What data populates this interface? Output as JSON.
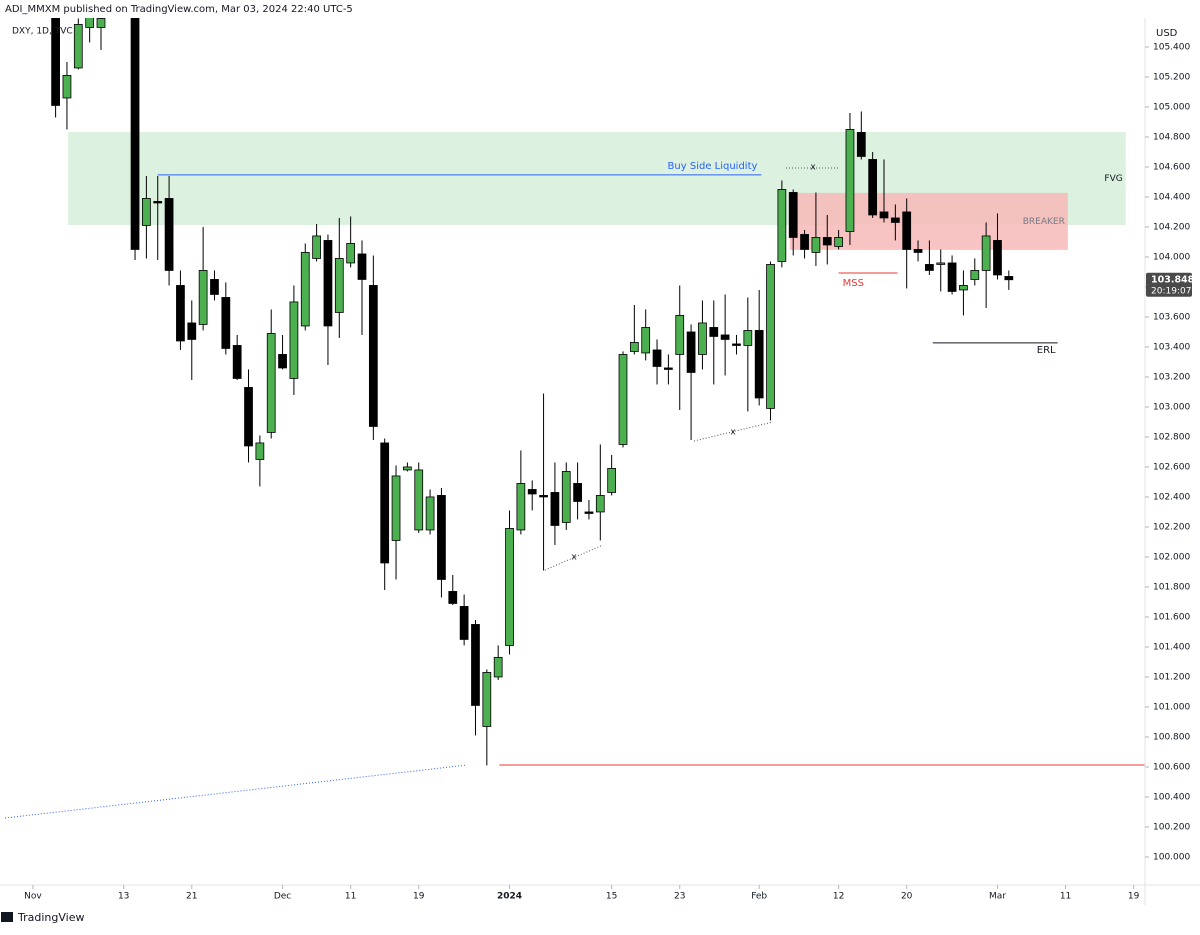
{
  "header": {
    "publisher": "ADI_MMXM published on TradingView.com, Mar 03, 2024 22:40 UTC-5",
    "symbol": "DXY, 1D, TVC"
  },
  "footer": {
    "brand": "TradingView"
  },
  "chart_data": {
    "type": "candlestick",
    "currency": "USD",
    "up_color": "#4caf50",
    "down_color": "#000000",
    "border_color": "#000000",
    "x": [
      2,
      3,
      4,
      5,
      6,
      9,
      10,
      11,
      12,
      13,
      14,
      15,
      16,
      17,
      18,
      19,
      20,
      21,
      22,
      23,
      24,
      25,
      26,
      27,
      28,
      29,
      30,
      31,
      32,
      33,
      34,
      35,
      36,
      37,
      38,
      39,
      40,
      41,
      42,
      43,
      44,
      45,
      46,
      47,
      48,
      49,
      50,
      51,
      52,
      53,
      54,
      55,
      56,
      57,
      58,
      59,
      60,
      61,
      62,
      63,
      64,
      65,
      66,
      67,
      68,
      69,
      70,
      71,
      72,
      73,
      74,
      75,
      76,
      77,
      78,
      79,
      80,
      81,
      82,
      83,
      84,
      85,
      86
    ],
    "open": [
      105.62,
      105.06,
      105.26,
      105.53,
      105.53,
      105.75,
      104.21,
      104.37,
      104.39,
      103.81,
      103.56,
      103.55,
      103.85,
      103.73,
      103.41,
      103.13,
      102.65,
      102.83,
      103.35,
      103.19,
      103.54,
      103.99,
      104.11,
      103.63,
      103.96,
      104.02,
      103.81,
      102.76,
      102.11,
      102.58,
      102.18,
      102.18,
      102.41,
      101.77,
      101.67,
      101.55,
      100.87,
      101.2,
      101.41,
      102.18,
      102.45,
      102.41,
      102.43,
      102.23,
      102.49,
      102.3,
      102.3,
      102.43,
      102.75,
      103.37,
      103.36,
      103.38,
      103.26,
      103.35,
      103.5,
      103.35,
      103.53,
      103.48,
      103.42,
      103.41,
      103.51,
      102.99,
      103.97,
      104.43,
      104.15,
      104.03,
      104.13,
      104.07,
      104.17,
      104.83,
      104.65,
      104.3,
      104.26,
      104.3,
      104.05,
      103.95,
      103.95,
      103.96,
      103.78,
      103.85,
      103.91,
      104.11,
      103.87
    ],
    "high": [
      105.7,
      105.3,
      105.59,
      105.65,
      105.66,
      105.85,
      104.54,
      104.54,
      104.54,
      103.91,
      103.71,
      104.2,
      103.91,
      103.83,
      103.48,
      103.25,
      102.81,
      103.65,
      103.48,
      103.81,
      104.09,
      104.22,
      104.15,
      104.26,
      104.27,
      104.11,
      104.01,
      102.79,
      102.61,
      102.63,
      102.63,
      102.45,
      102.46,
      101.88,
      101.75,
      101.58,
      101.25,
      101.41,
      102.31,
      102.71,
      102.51,
      103.09,
      102.63,
      102.63,
      102.63,
      102.38,
      102.75,
      102.68,
      103.37,
      103.68,
      103.65,
      103.45,
      103.35,
      103.81,
      103.55,
      103.71,
      103.71,
      103.75,
      103.48,
      103.73,
      103.78,
      103.97,
      104.51,
      104.45,
      104.18,
      104.43,
      104.28,
      104.18,
      104.96,
      104.97,
      104.7,
      104.65,
      104.35,
      104.39,
      104.11,
      104.11,
      104.05,
      104.01,
      103.91,
      103.99,
      104.23,
      104.29,
      103.91
    ],
    "low": [
      104.93,
      104.85,
      105.25,
      105.43,
      105.38,
      103.98,
      103.99,
      103.98,
      103.81,
      103.38,
      103.18,
      103.51,
      103.71,
      103.35,
      103.18,
      102.63,
      102.47,
      102.79,
      103.25,
      103.08,
      103.51,
      103.97,
      103.28,
      103.46,
      103.93,
      103.48,
      102.78,
      101.78,
      101.85,
      102.57,
      102.16,
      102.15,
      101.73,
      101.68,
      101.41,
      100.81,
      100.61,
      101.18,
      101.35,
      102.15,
      102.31,
      101.91,
      102.08,
      102.18,
      102.25,
      102.25,
      102.11,
      102.41,
      102.73,
      103.35,
      103.31,
      103.15,
      103.15,
      102.98,
      102.78,
      103.25,
      103.15,
      103.21,
      103.35,
      102.97,
      103.01,
      102.91,
      103.93,
      104.01,
      103.99,
      103.94,
      103.95,
      104.05,
      104.08,
      104.65,
      104.26,
      104.23,
      104.11,
      103.79,
      103.97,
      103.88,
      103.77,
      103.75,
      103.61,
      103.81,
      103.66,
      103.85,
      103.78
    ],
    "close": [
      105.01,
      105.21,
      105.55,
      105.61,
      105.59,
      104.05,
      104.39,
      104.36,
      103.91,
      103.44,
      103.45,
      103.91,
      103.75,
      103.39,
      103.19,
      102.74,
      102.76,
      103.49,
      103.26,
      103.7,
      104.03,
      104.14,
      103.54,
      103.99,
      104.09,
      103.85,
      102.87,
      101.96,
      102.54,
      102.6,
      102.58,
      102.4,
      101.85,
      101.69,
      101.45,
      101.01,
      101.23,
      101.33,
      102.19,
      102.49,
      102.42,
      102.4,
      102.21,
      102.57,
      102.37,
      102.29,
      102.41,
      102.59,
      103.35,
      103.43,
      103.53,
      103.27,
      103.25,
      103.61,
      103.23,
      103.56,
      103.47,
      103.45,
      103.41,
      103.51,
      103.06,
      103.95,
      104.45,
      104.13,
      104.05,
      104.13,
      104.08,
      104.13,
      104.85,
      104.67,
      104.28,
      104.26,
      104.23,
      104.05,
      104.03,
      103.91,
      103.96,
      103.77,
      103.81,
      103.91,
      104.14,
      103.88,
      103.848
    ],
    "last_price": 103.848,
    "countdown": "20:19:07",
    "xlim": [
      -2.9,
      98
    ],
    "ylim": [
      99.813,
      105.593
    ],
    "xticks": [
      {
        "value": 0,
        "label": "Nov"
      },
      {
        "value": 8,
        "label": "13"
      },
      {
        "value": 14,
        "label": "21"
      },
      {
        "value": 22,
        "label": "Dec"
      },
      {
        "value": 28,
        "label": "11"
      },
      {
        "value": 34,
        "label": "19"
      },
      {
        "value": 42,
        "label": "2024"
      },
      {
        "value": 51,
        "label": "15"
      },
      {
        "value": 57,
        "label": "23"
      },
      {
        "value": 64,
        "label": "Feb"
      },
      {
        "value": 71,
        "label": "12"
      },
      {
        "value": 77,
        "label": "20"
      },
      {
        "value": 85,
        "label": "Mar"
      },
      {
        "value": 91,
        "label": "11"
      },
      {
        "value": 97,
        "label": "19"
      }
    ],
    "yticks": [
      {
        "value": 100,
        "label": "100.000"
      },
      {
        "value": 100.2,
        "label": "100.200"
      },
      {
        "value": 100.4,
        "label": "100.400"
      },
      {
        "value": 100.6,
        "label": "100.600"
      },
      {
        "value": 100.8,
        "label": "100.800"
      },
      {
        "value": 101,
        "label": "101.000"
      },
      {
        "value": 101.2,
        "label": "101.200"
      },
      {
        "value": 101.4,
        "label": "101.400"
      },
      {
        "value": 101.6,
        "label": "101.600"
      },
      {
        "value": 101.8,
        "label": "101.800"
      },
      {
        "value": 102,
        "label": "102.000"
      },
      {
        "value": 102.2,
        "label": "102.200"
      },
      {
        "value": 102.4,
        "label": "102.400"
      },
      {
        "value": 102.6,
        "label": "102.600"
      },
      {
        "value": 102.8,
        "label": "102.800"
      },
      {
        "value": 103,
        "label": "103.000"
      },
      {
        "value": 103.2,
        "label": "103.200"
      },
      {
        "value": 103.4,
        "label": "103.400"
      },
      {
        "value": 103.6,
        "label": "103.600"
      },
      {
        "value": 103.8,
        "label": "103.800"
      },
      {
        "value": 104,
        "label": "104.000"
      },
      {
        "value": 104.2,
        "label": "104.200"
      },
      {
        "value": 104.4,
        "label": "104.400"
      },
      {
        "value": 104.6,
        "label": "104.600"
      },
      {
        "value": 104.8,
        "label": "104.800"
      },
      {
        "value": 105,
        "label": "105.000"
      },
      {
        "value": 105.2,
        "label": "105.200"
      },
      {
        "value": 105.4,
        "label": "105.400"
      }
    ],
    "zones": [
      {
        "label": "FVG",
        "ylim": [
          104.213,
          104.833
        ],
        "xlim": [
          3.1,
          96.3
        ],
        "color": "#d6eed9",
        "label_color": "#131722"
      },
      {
        "label": "BREAKER",
        "ylim": [
          104.047,
          104.427
        ],
        "xlim": [
          66.7,
          91.2
        ],
        "color": "#f7b8b8",
        "label_color": "#787b86"
      }
    ],
    "levels": [
      {
        "label": "Buy Side Liquidity",
        "y": 104.547,
        "xlim": [
          11,
          64.2
        ],
        "color": "#2962ff"
      },
      {
        "label": "MSS",
        "y": 103.893,
        "xlim": [
          71,
          76.2
        ],
        "color": "#e53935"
      },
      {
        "label": "ERL",
        "y": 103.427,
        "xlim": [
          79.3,
          90.3
        ],
        "color": "#131722"
      },
      {
        "y": 100.613,
        "xlim": [
          41.1,
          98
        ],
        "color": "#e53935"
      }
    ],
    "marks": [
      "x",
      "x",
      "x"
    ]
  }
}
